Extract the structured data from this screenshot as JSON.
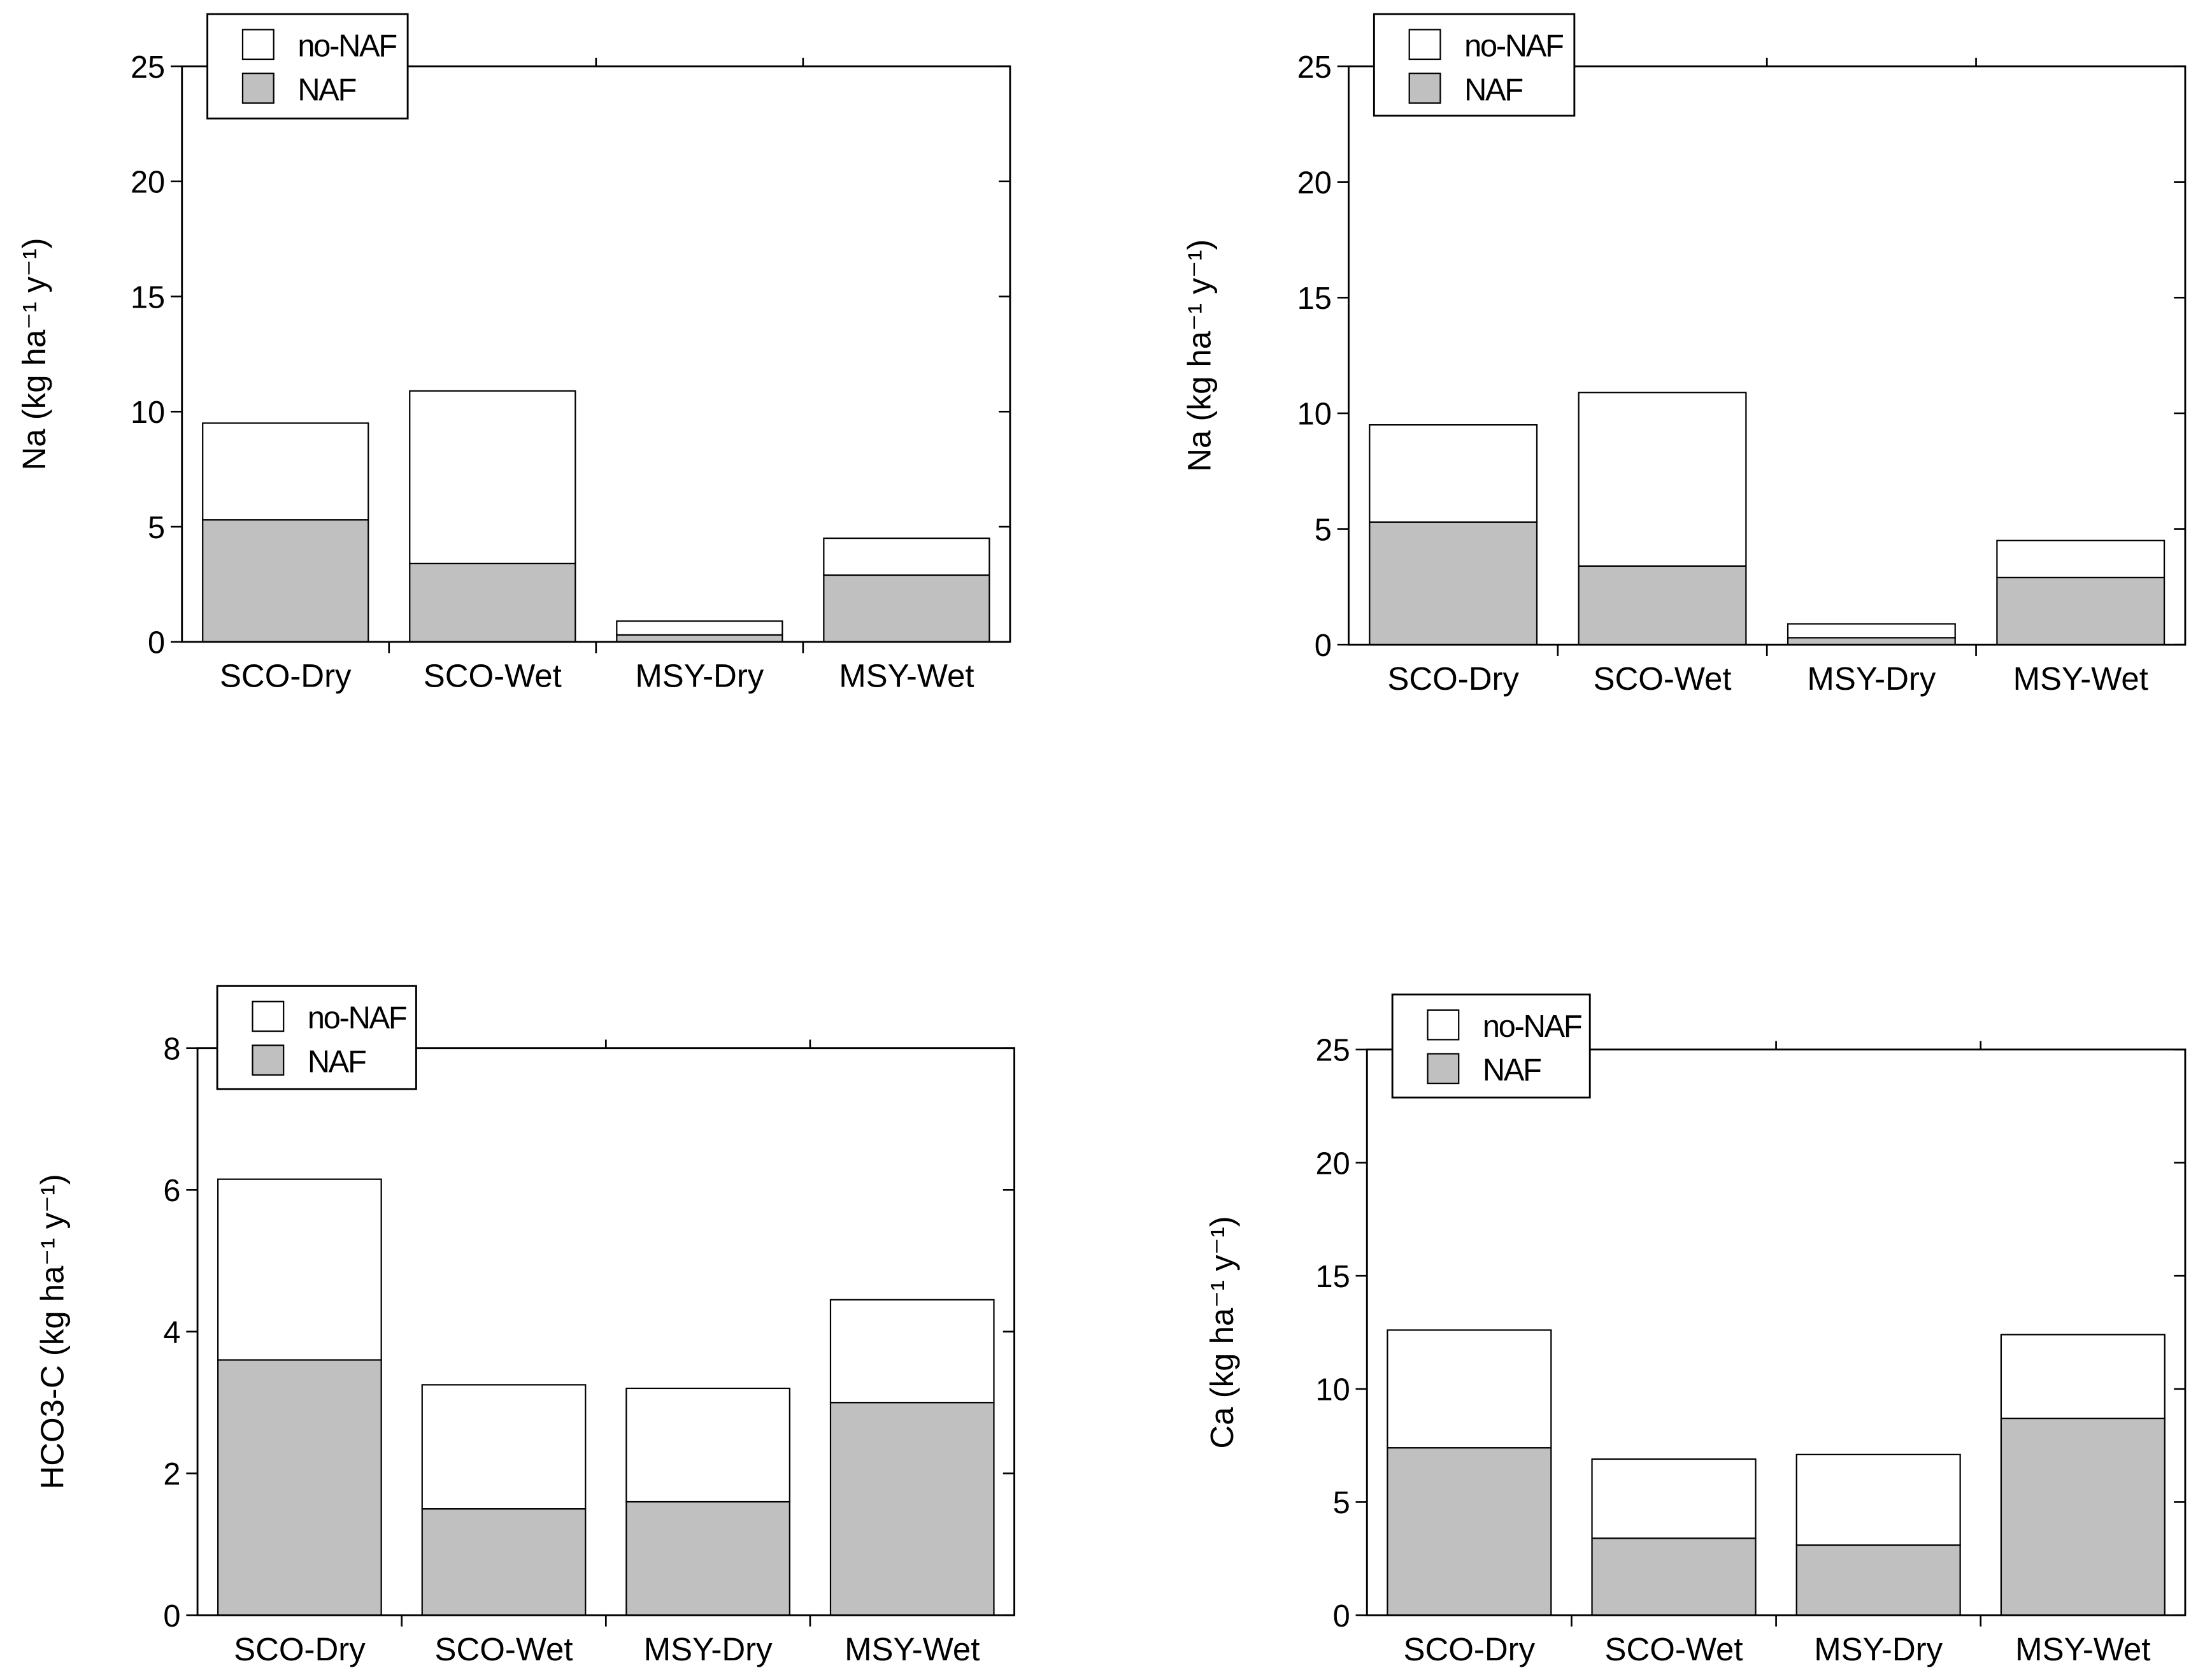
{
  "chart_data": [
    {
      "type": "bar",
      "stacked": true,
      "ylabel": "Na (kg ha⁻¹ y⁻¹)",
      "categories": [
        "SCO-Dry",
        "SCO-Wet",
        "MSY-Dry",
        "MSY-Wet"
      ],
      "series": [
        {
          "name": "NAF",
          "color": "#c0c0c0",
          "values": [
            5.3,
            3.4,
            0.3,
            2.9
          ]
        },
        {
          "name": "no-NAF",
          "color": "#ffffff",
          "values": [
            4.2,
            7.5,
            0.6,
            1.6
          ]
        }
      ],
      "ylim": [
        0,
        25
      ],
      "yticks": [
        0,
        5,
        10,
        15,
        20,
        25
      ]
    },
    {
      "type": "bar",
      "stacked": true,
      "ylabel": "Na (kg ha⁻¹ y⁻¹)",
      "categories": [
        "SCO-Dry",
        "SCO-Wet",
        "MSY-Dry",
        "MSY-Wet"
      ],
      "series": [
        {
          "name": "NAF",
          "color": "#c0c0c0",
          "values": [
            5.3,
            3.4,
            0.3,
            2.9
          ]
        },
        {
          "name": "no-NAF",
          "color": "#ffffff",
          "values": [
            4.2,
            7.5,
            0.6,
            1.6
          ]
        }
      ],
      "ylim": [
        0,
        25
      ],
      "yticks": [
        0,
        5,
        10,
        15,
        20,
        25
      ]
    },
    {
      "type": "bar",
      "stacked": true,
      "ylabel": "HCO3-C (kg ha⁻¹ y⁻¹)",
      "categories": [
        "SCO-Dry",
        "SCO-Wet",
        "MSY-Dry",
        "MSY-Wet"
      ],
      "series": [
        {
          "name": "NAF",
          "color": "#c0c0c0",
          "values": [
            3.6,
            1.5,
            1.6,
            3.0
          ]
        },
        {
          "name": "no-NAF",
          "color": "#ffffff",
          "values": [
            2.55,
            1.75,
            1.6,
            1.45
          ]
        }
      ],
      "ylim": [
        0,
        8
      ],
      "yticks": [
        0,
        2,
        4,
        6,
        8
      ]
    },
    {
      "type": "bar",
      "stacked": true,
      "ylabel": "Ca (kg ha⁻¹ y⁻¹)",
      "categories": [
        "SCO-Dry",
        "SCO-Wet",
        "MSY-Dry",
        "MSY-Wet"
      ],
      "series": [
        {
          "name": "NAF",
          "color": "#c0c0c0",
          "values": [
            7.4,
            3.4,
            3.1,
            8.7
          ]
        },
        {
          "name": "no-NAF",
          "color": "#ffffff",
          "values": [
            5.2,
            3.5,
            4.0,
            3.7
          ]
        }
      ],
      "ylim": [
        0,
        25
      ],
      "yticks": [
        0,
        5,
        10,
        15,
        20,
        25
      ]
    }
  ]
}
